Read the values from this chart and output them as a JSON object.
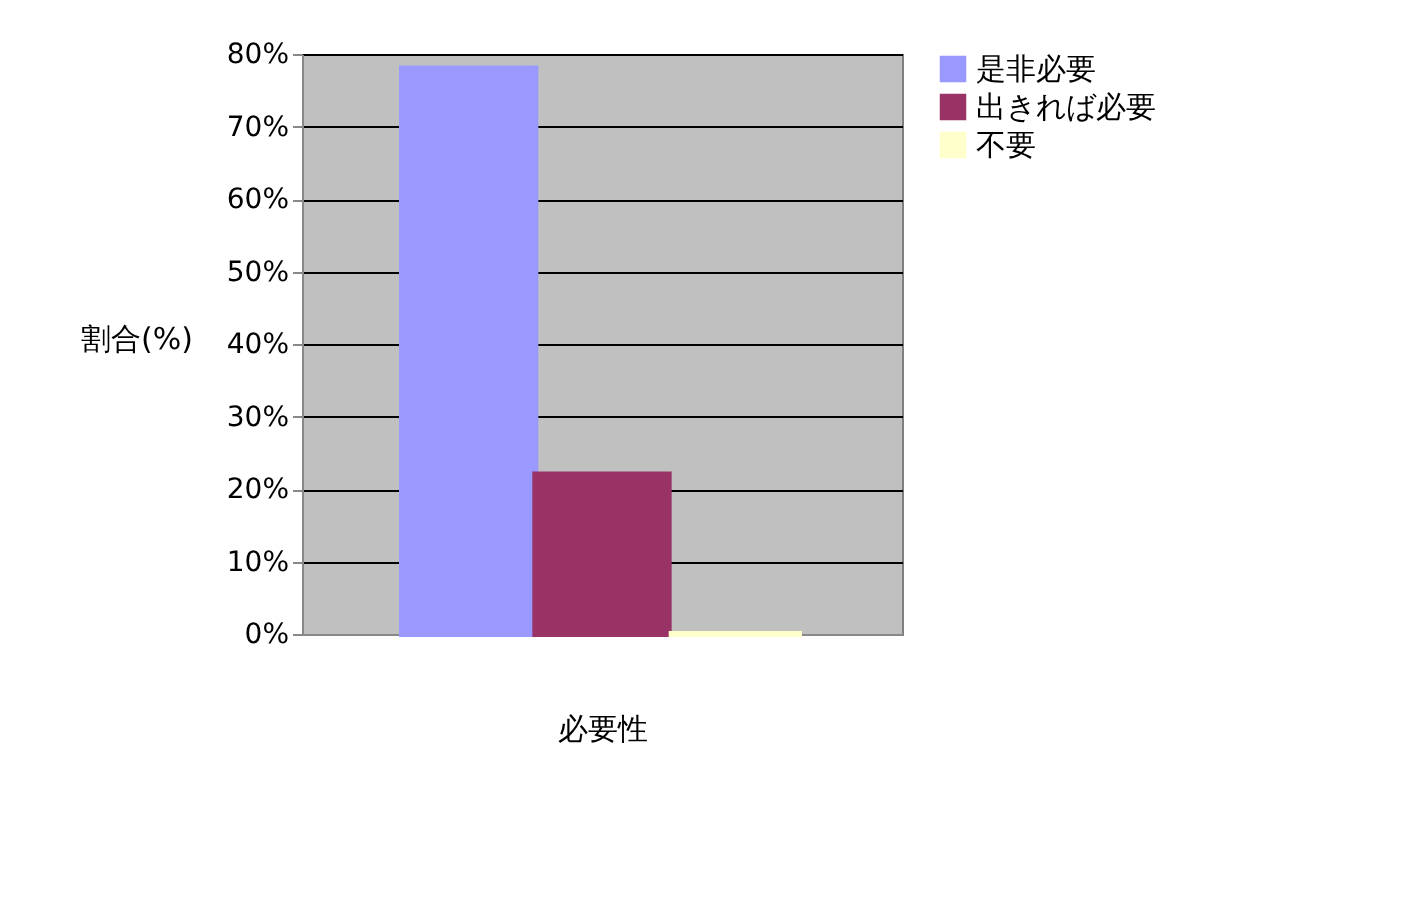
{
  "chart_data": {
    "type": "bar",
    "xlabel": "必要性",
    "ylabel": "割合(%)",
    "categories": [
      null
    ],
    "series": [
      {
        "name": "是非必要",
        "color": "#9999ff",
        "values": [
          78
        ]
      },
      {
        "name": "出きれば必要",
        "color": "#993366",
        "values": [
          22
        ]
      },
      {
        "name": "不要",
        "color": "#ffffcc",
        "values": [
          0
        ]
      }
    ],
    "ylim": [
      0,
      80
    ],
    "yticks": [
      {
        "value": 0,
        "label": "0%"
      },
      {
        "value": 10,
        "label": "10%"
      },
      {
        "value": 20,
        "label": "20%"
      },
      {
        "value": 30,
        "label": "30%"
      },
      {
        "value": 40,
        "label": "40%"
      },
      {
        "value": 50,
        "label": "50%"
      },
      {
        "value": 60,
        "label": "60%"
      },
      {
        "value": 70,
        "label": "70%"
      },
      {
        "value": 80,
        "label": "80%"
      }
    ],
    "grid": "y",
    "legend": "right",
    "tick_labels": "y"
  }
}
